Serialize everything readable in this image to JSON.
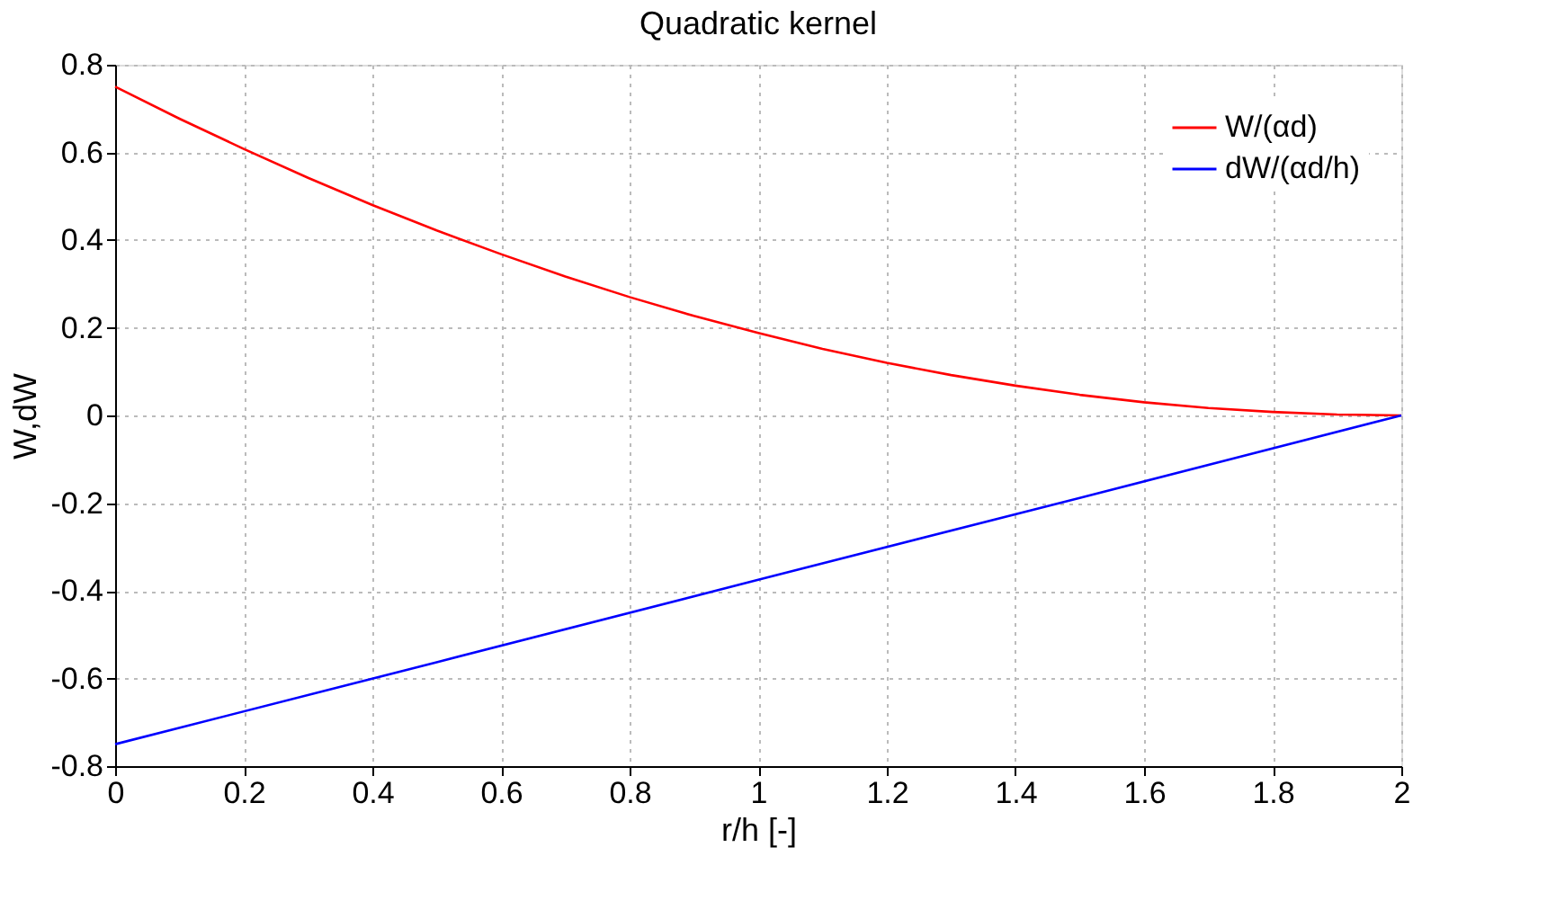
{
  "chart_data": {
    "type": "line",
    "title": "Quadratic kernel",
    "xlabel": "r/h [-]",
    "ylabel": "W,dW",
    "xlim": [
      0,
      2
    ],
    "xticks": [
      0,
      0.2,
      0.4,
      0.6,
      0.8,
      1,
      1.2,
      1.4,
      1.6,
      1.8,
      2
    ],
    "ylim": [
      -0.8,
      0.8
    ],
    "yticks": [
      -0.8,
      -0.6,
      -0.4,
      -0.2,
      0,
      0.2,
      0.4,
      0.6,
      0.8
    ],
    "grid": true,
    "legend": "top right",
    "marker": "none",
    "line_style": "solid",
    "series": [
      {
        "name": "W/(αd)",
        "color": "#ff0000",
        "x": [
          0,
          0.1,
          0.2,
          0.3,
          0.4,
          0.5,
          0.6,
          0.7,
          0.8,
          0.9,
          1.0,
          1.1,
          1.2,
          1.3,
          1.4,
          1.5,
          1.6,
          1.7,
          1.8,
          1.9,
          2.0
        ],
        "values": [
          0.75,
          0.677,
          0.608,
          0.542,
          0.48,
          0.422,
          0.368,
          0.317,
          0.27,
          0.227,
          0.188,
          0.152,
          0.12,
          0.092,
          0.068,
          0.047,
          0.03,
          0.017,
          0.008,
          0.002,
          0
        ]
      },
      {
        "name": "dW/(αd/h)",
        "color": "#0000ff",
        "x": [
          0,
          0.5,
          1.0,
          1.5,
          2.0
        ],
        "values": [
          -0.75,
          -0.563,
          -0.375,
          -0.188,
          0
        ]
      }
    ]
  }
}
